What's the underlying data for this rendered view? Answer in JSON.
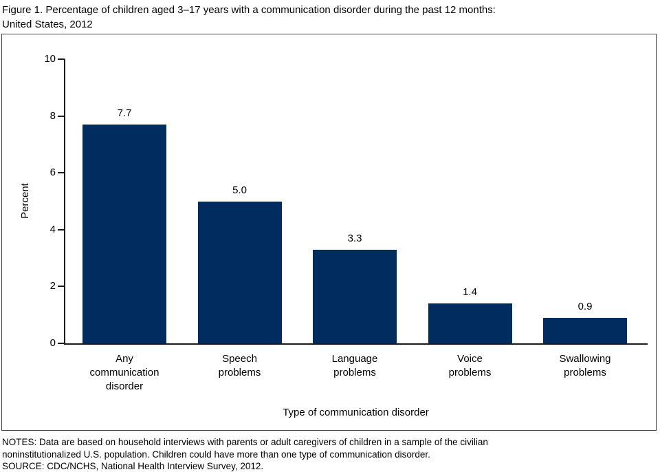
{
  "title": {
    "line1": "Figure 1. Percentage of children aged 3–17 years with a communication disorder during the past 12 months:",
    "line2": "United States, 2012"
  },
  "chart_data": {
    "type": "bar",
    "title": "Figure 1. Percentage of children aged 3–17 years with a communication disorder during the past 12 months: United States, 2012",
    "categories": [
      "Any\ncommunication\ndisorder",
      "Speech\nproblems",
      "Language\nproblems",
      "Voice\nproblems",
      "Swallowing\nproblems"
    ],
    "values": [
      7.7,
      5.0,
      3.3,
      1.4,
      0.9
    ],
    "value_labels": [
      "7.7",
      "5.0",
      "3.3",
      "1.4",
      "0.9"
    ],
    "xlabel": "Type of communication disorder",
    "ylabel": "Percent",
    "ylim": [
      0,
      10
    ],
    "yticks": [
      0,
      2,
      4,
      6,
      8,
      10
    ],
    "bar_color": "#002c5f",
    "grid": false,
    "legend": "none"
  },
  "notes": {
    "lines": [
      "NOTES: Data are based on household interviews with parents or adult caregivers of children in a sample of the civilian",
      "noninstitutionalized U.S. population. Children could have more than one type of communication disorder.",
      "SOURCE: CDC/NCHS, National Health Interview Survey, 2012."
    ]
  }
}
